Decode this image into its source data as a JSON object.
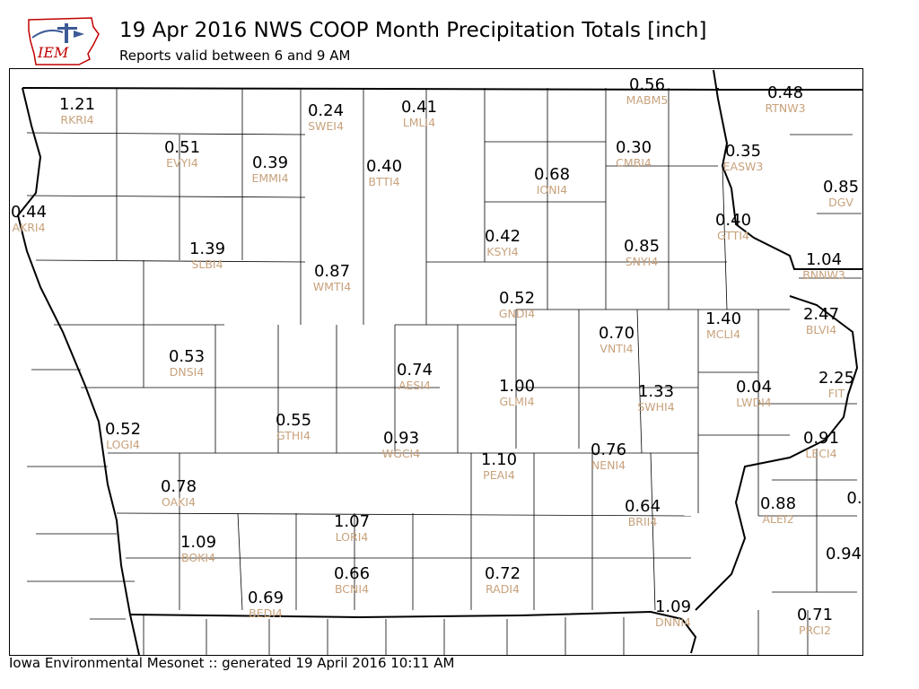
{
  "header": {
    "title": "19 Apr 2016 NWS COOP Month Precipitation Totals [inch]",
    "subtitle": "Reports valid between 6 and 9 AM"
  },
  "logo": {
    "text": "IEM"
  },
  "footer": {
    "text": "Iowa Environmental Mesonet :: generated 19 April 2016 10:11 AM"
  },
  "colors": {
    "value": "#000000",
    "station_id": "#c8a27c",
    "county_line": "#000000"
  },
  "stations": [
    {
      "v": "1.21",
      "id": "RKRI4"
    },
    {
      "v": "0.24",
      "id": "SWEI4"
    },
    {
      "v": "0.41",
      "id": "LMLI4"
    },
    {
      "v": "0.56",
      "id": "MABM5"
    },
    {
      "v": "0.48",
      "id": "RTNW3"
    },
    {
      "v": "0.51",
      "id": "EVYI4"
    },
    {
      "v": "0.39",
      "id": "EMMI4"
    },
    {
      "v": "0.40",
      "id": "BTTI4"
    },
    {
      "v": "0.68",
      "id": "IONI4"
    },
    {
      "v": "0.30",
      "id": "CMBI4"
    },
    {
      "v": "0.35",
      "id": "EASW3"
    },
    {
      "v": "0.85",
      "id": "DGV"
    },
    {
      "v": "0.44",
      "id": "AKRI4"
    },
    {
      "v": "0.40",
      "id": "GTTI4"
    },
    {
      "v": "1.39",
      "id": "SLBI4"
    },
    {
      "v": "0.42",
      "id": "KSYI4"
    },
    {
      "v": "0.85",
      "id": "SNYI4"
    },
    {
      "v": "1.04",
      "id": "BNNW3"
    },
    {
      "v": "0.87",
      "id": "WMTI4"
    },
    {
      "v": "0.52",
      "id": "GNDI4"
    },
    {
      "v": "1.40",
      "id": "MCLI4"
    },
    {
      "v": "2.47",
      "id": "BLVI4"
    },
    {
      "v": "0.70",
      "id": "VNTI4"
    },
    {
      "v": "0.53",
      "id": "DNSI4"
    },
    {
      "v": "0.74",
      "id": "AESI4"
    },
    {
      "v": "2.25",
      "id": "FIT"
    },
    {
      "v": "1.00",
      "id": "GLMI4"
    },
    {
      "v": "1.33",
      "id": "SWHI4"
    },
    {
      "v": "0.04",
      "id": "LWDI4"
    },
    {
      "v": "0.52",
      "id": "LOGI4"
    },
    {
      "v": "0.55",
      "id": "GTHI4"
    },
    {
      "v": "0.93",
      "id": "WGCI4"
    },
    {
      "v": "0.91",
      "id": "LECI4"
    },
    {
      "v": "0.76",
      "id": "NENI4"
    },
    {
      "v": "1.10",
      "id": "PEAI4"
    },
    {
      "v": "0.78",
      "id": "OAKI4"
    },
    {
      "v": "0.88",
      "id": "ALEI2"
    },
    {
      "v": "0.",
      "id": ""
    },
    {
      "v": "0.64",
      "id": "BRII4"
    },
    {
      "v": "1.07",
      "id": "LORI4"
    },
    {
      "v": "1.09",
      "id": "BOKI4"
    },
    {
      "v": "0.94",
      "id": ""
    },
    {
      "v": "0.66",
      "id": "BCNI4"
    },
    {
      "v": "0.72",
      "id": "RADI4"
    },
    {
      "v": "0.69",
      "id": "BEDI4"
    },
    {
      "v": "1.09",
      "id": "DNNI4"
    },
    {
      "v": "0.71",
      "id": "PRCI2"
    }
  ]
}
